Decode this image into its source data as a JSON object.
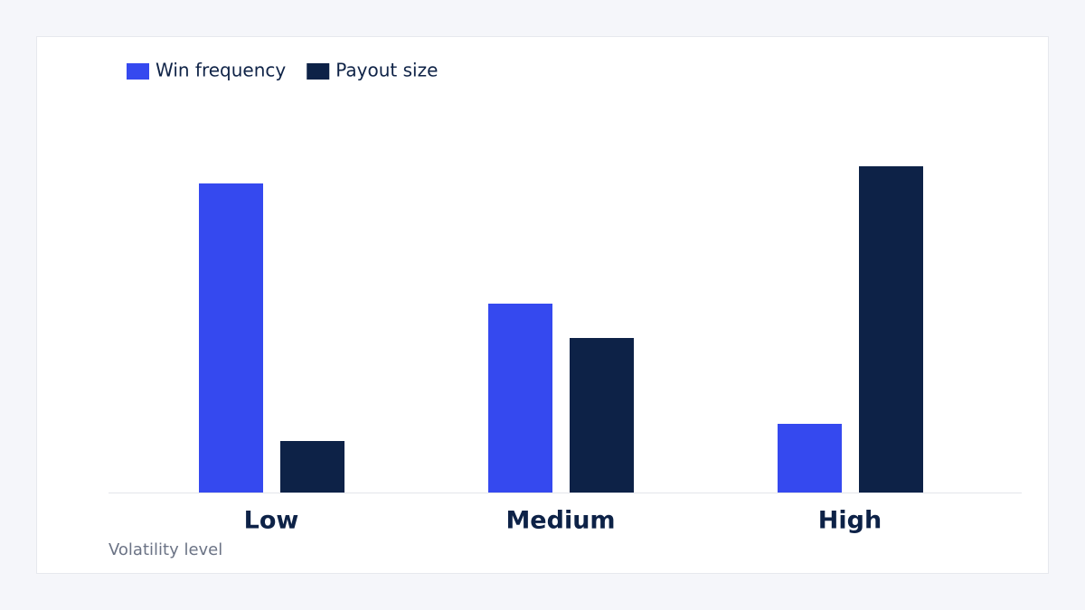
{
  "chart_data": {
    "type": "bar",
    "x_label": "Volatility level",
    "categories": [
      "Low",
      "Medium",
      "High"
    ],
    "series": [
      {
        "name": "Win frequency",
        "color": "#3549ef",
        "values": [
          90,
          55,
          20
        ]
      },
      {
        "name": "Payout size",
        "color": "#0d2247",
        "values": [
          15,
          45,
          95
        ]
      }
    ],
    "ylim": [
      0,
      100
    ]
  }
}
